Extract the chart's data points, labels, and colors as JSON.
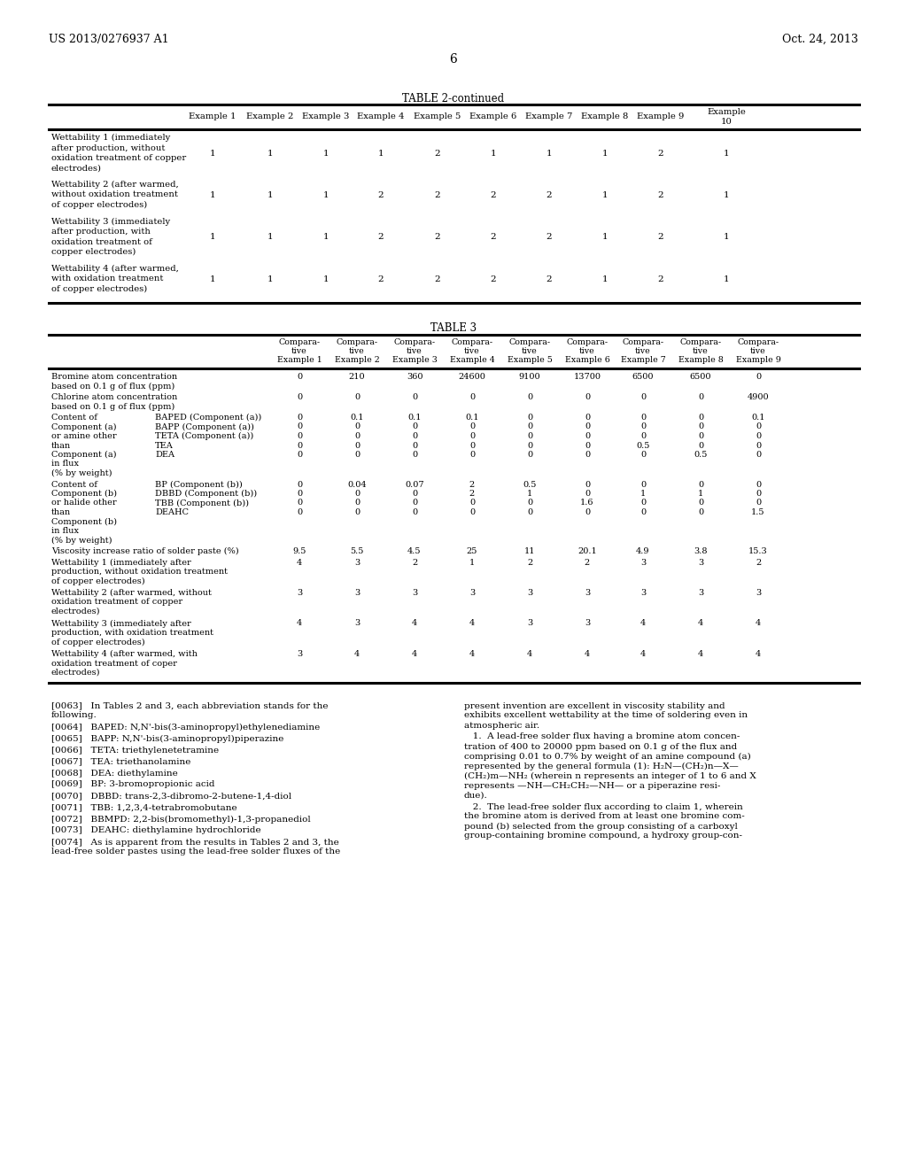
{
  "page_number": "6",
  "header_left": "US 2013/0276937 A1",
  "header_right": "Oct. 24, 2013",
  "bg_color": "#ffffff",
  "table2_title": "TABLE 2-continued",
  "table2_col_headers": [
    "Example 1",
    "Example 2",
    "Example 3",
    "Example 4",
    "Example 5",
    "Example 6",
    "Example 7",
    "Example 8",
    "Example 9",
    "Example\n10"
  ],
  "table2_rows": [
    {
      "label_lines": [
        "Wettability 1 (immediately",
        "after production, without",
        "oxidation treatment of copper",
        "electrodes)"
      ],
      "values": [
        "1",
        "1",
        "1",
        "1",
        "2",
        "1",
        "1",
        "1",
        "2",
        "1"
      ]
    },
    {
      "label_lines": [
        "Wettability 2 (after warmed,",
        "without oxidation treatment",
        "of copper electrodes)"
      ],
      "values": [
        "1",
        "1",
        "1",
        "2",
        "2",
        "2",
        "2",
        "1",
        "2",
        "1"
      ]
    },
    {
      "label_lines": [
        "Wettability 3 (immediately",
        "after production, with",
        "oxidation treatment of",
        "copper electrodes)"
      ],
      "values": [
        "1",
        "1",
        "1",
        "2",
        "2",
        "2",
        "2",
        "1",
        "2",
        "1"
      ]
    },
    {
      "label_lines": [
        "Wettability 4 (after warmed,",
        "with oxidation treatment",
        "of copper electrodes)"
      ],
      "values": [
        "1",
        "1",
        "1",
        "2",
        "2",
        "2",
        "2",
        "1",
        "2",
        "1"
      ]
    }
  ],
  "table3_title": "TABLE 3",
  "table3_col_headers": [
    "Compara-\ntive\nExample 1",
    "Compara-\ntive\nExample 2",
    "Compara-\ntive\nExample 3",
    "Compara-\ntive\nExample 4",
    "Compara-\ntive\nExample 5",
    "Compara-\ntive\nExample 6",
    "Compara-\ntive\nExample 7",
    "Compara-\ntive\nExample 8",
    "Compara-\ntive\nExample 9"
  ],
  "left_col_paras": [
    "[0063]   In Tables 2 and 3, each abbreviation stands for the\nfollowing.",
    "[0064]   BAPED: N,N'-bis(3-aminopropyl)ethylenediamine",
    "[0065]   BAPP: N,N'-bis(3-aminopropyl)piperazine",
    "[0066]   TETA: triethylenetetramine",
    "[0067]   TEA: triethanolamine",
    "[0068]   DEA: diethylamine",
    "[0069]   BP: 3-bromopropionic acid",
    "[0070]   DBBD: trans-2,3-dibromo-2-butene-1,4-diol",
    "[0071]   TBB: 1,2,3,4-tetrabromobutane",
    "[0072]   BBMPD: 2,2-bis(bromomethyl)-1,3-propanediol",
    "[0073]   DEAHC: diethylamine hydrochloride",
    "[0074]   As is apparent from the results in Tables 2 and 3, the\nlead-free solder pastes using the lead-free solder fluxes of the"
  ],
  "right_col_paras": [
    "present invention are excellent in viscosity stability and\nexhibits excellent wettability at the time of soldering even in\natmospheric air.",
    "   1.  A lead-free solder flux having a bromine atom concen-\ntration of 400 to 20000 ppm based on 0.1 g of the flux and\ncomprising 0.01 to 0.7% by weight of an amine compound (a)\nrepresented by the general formula (1): H₂N—(CH₂)n—X—\n(CH₂)m—NH₂ (wherein n represents an integer of 1 to 6 and X\nrepresents —NH—CH₂CH₂—NH— or a piperazine resi-\ndue).",
    "   2.  The lead-free solder flux according to claim 1, wherein\nthe bromine atom is derived from at least one bromine com-\npound (b) selected from the group consisting of a carboxyl\ngroup-containing bromine compound, a hydroxy group-con-"
  ]
}
